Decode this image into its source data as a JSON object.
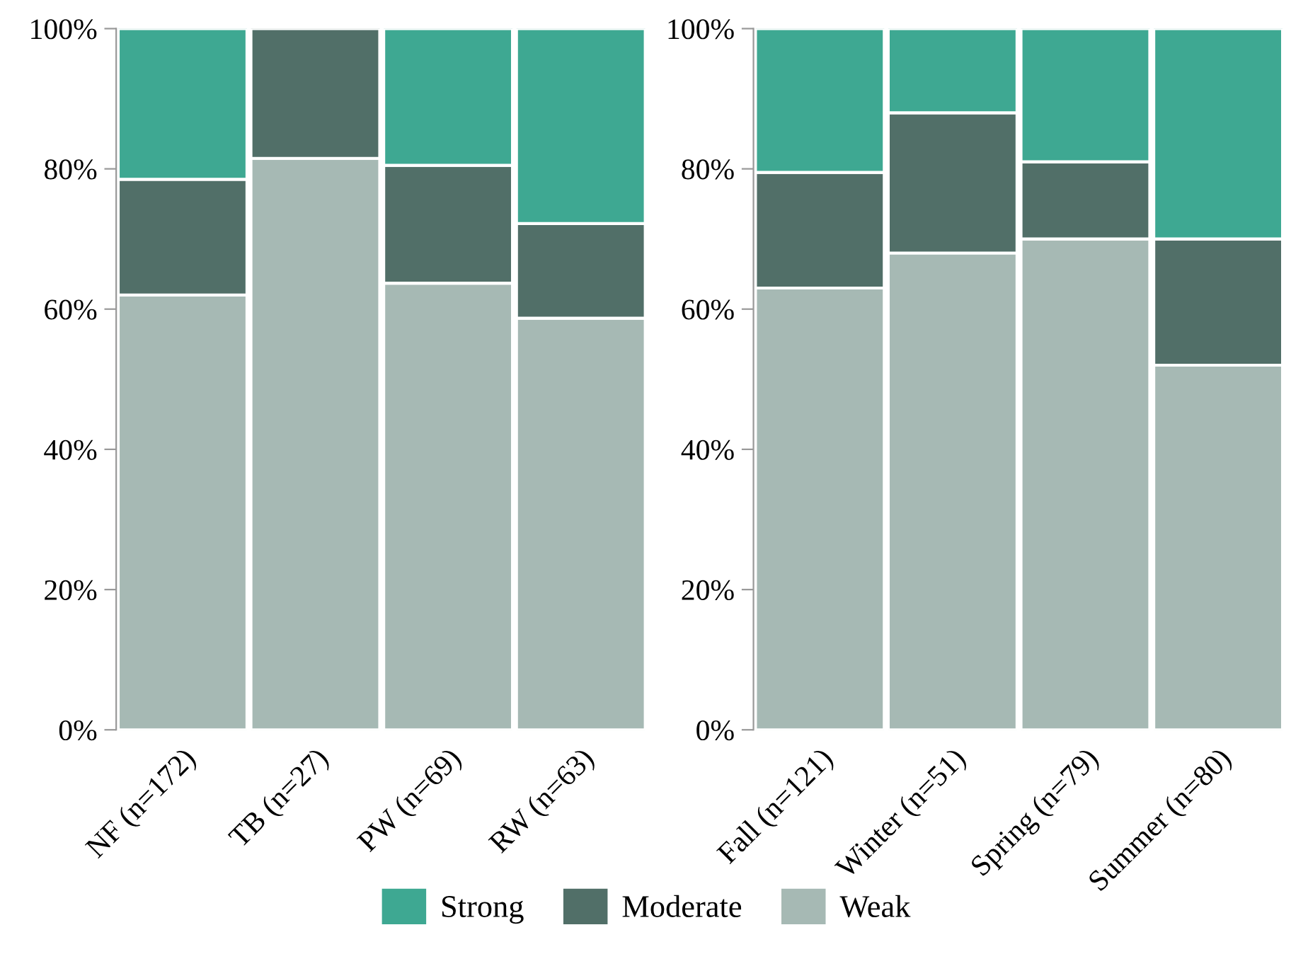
{
  "chart_data": [
    {
      "type": "bar",
      "stacked": true,
      "categories": [
        "NF (n=172)",
        "TB (n=27)",
        "PW (n=69)",
        "RW (n=63)"
      ],
      "series": [
        {
          "name": "Weak",
          "color": "#a6b9b4",
          "values": [
            62,
            81.5,
            63.7,
            58.7
          ]
        },
        {
          "name": "Moderate",
          "color": "#516f68",
          "values": [
            16.5,
            18.5,
            16.8,
            13.5
          ]
        },
        {
          "name": "Strong",
          "color": "#3ea892",
          "values": [
            21.5,
            null,
            19.5,
            27.8
          ]
        }
      ],
      "ylim": [
        0,
        100
      ],
      "yticks": [
        {
          "value": 0,
          "label": "0%"
        },
        {
          "value": 20,
          "label": "20%"
        },
        {
          "value": 40,
          "label": "40%"
        },
        {
          "value": 60,
          "label": "60%"
        },
        {
          "value": 80,
          "label": "80%"
        },
        {
          "value": 100,
          "label": "100%"
        }
      ],
      "legend": "bottom"
    },
    {
      "type": "bar",
      "stacked": true,
      "categories": [
        "Fall (n=121)",
        "Winter (n=51)",
        "Spring (n=79)",
        "Summer (n=80)"
      ],
      "series": [
        {
          "color": "#a6b9b4",
          "values": [
            63,
            68,
            70,
            52
          ]
        },
        {
          "color": "#516f68",
          "values": [
            16.5,
            20,
            11,
            18
          ]
        },
        {
          "color": "#3ea892",
          "values": [
            20.5,
            12,
            19,
            30
          ]
        }
      ],
      "ylim": [
        0,
        100
      ],
      "yticks": [
        {
          "value": 0,
          "label": "0%"
        },
        {
          "value": 20,
          "label": "20%"
        },
        {
          "value": 40,
          "label": "40%"
        },
        {
          "value": 60,
          "label": "60%"
        },
        {
          "value": 80,
          "label": "80%"
        },
        {
          "value": 100,
          "label": "100%"
        }
      ]
    }
  ]
}
